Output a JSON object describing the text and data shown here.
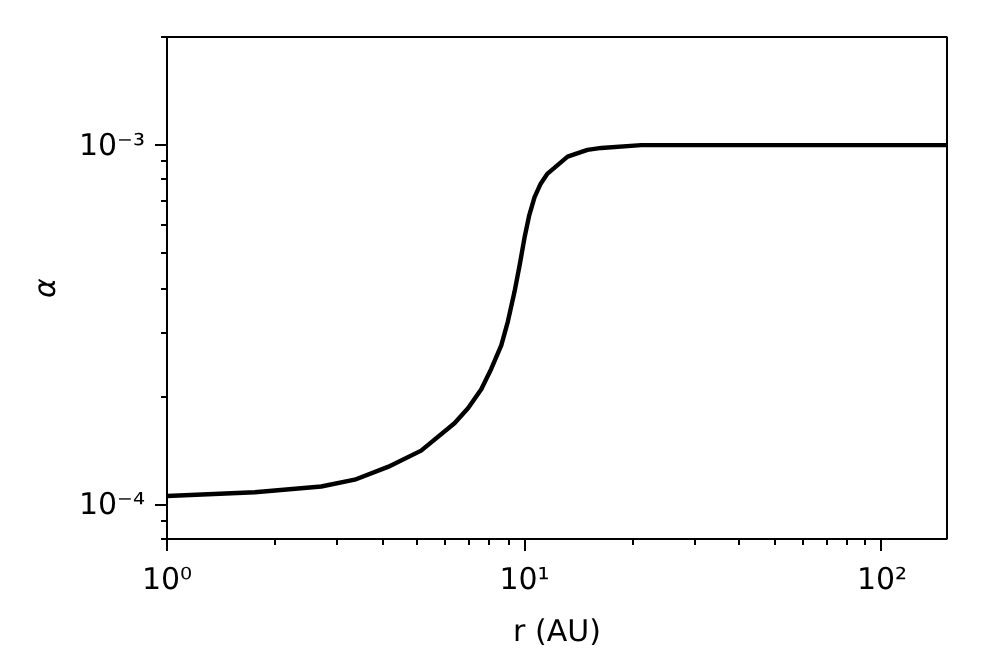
{
  "chart_data": {
    "type": "line",
    "xlabel": "r (AU)",
    "ylabel": "α",
    "log": "xy",
    "grid": false,
    "xlim": [
      1,
      152
    ],
    "ylim": [
      8e-05,
      0.002
    ],
    "xticks": [
      {
        "value": 1,
        "label": "10⁰"
      },
      {
        "value": 10,
        "label": "10¹"
      },
      {
        "value": 100,
        "label": "10²"
      }
    ],
    "yticks": [
      {
        "value": 0.0001,
        "label": "10⁻⁴"
      },
      {
        "value": 0.001,
        "label": "10⁻³"
      }
    ],
    "series": [
      {
        "color": "#000000",
        "x": [
          1,
          1.76,
          2.7,
          3.35,
          4.15,
          5.14,
          6.37,
          6.95,
          7.57,
          8.07,
          8.61,
          8.98,
          9.38,
          9.7,
          10,
          10.3,
          10.67,
          11.1,
          11.6,
          13.2,
          15.0,
          16.4,
          21.2,
          152
        ],
        "values": [
          0.0001054,
          0.000108,
          0.000112,
          0.000117,
          0.000127,
          0.000141,
          0.000168,
          0.000185,
          0.000209,
          0.000238,
          0.000277,
          0.000322,
          0.000391,
          0.000465,
          0.000552,
          0.000635,
          0.000716,
          0.000781,
          0.000833,
          0.000929,
          0.00097,
          0.000982,
          0.001,
          0.001
        ]
      }
    ]
  }
}
